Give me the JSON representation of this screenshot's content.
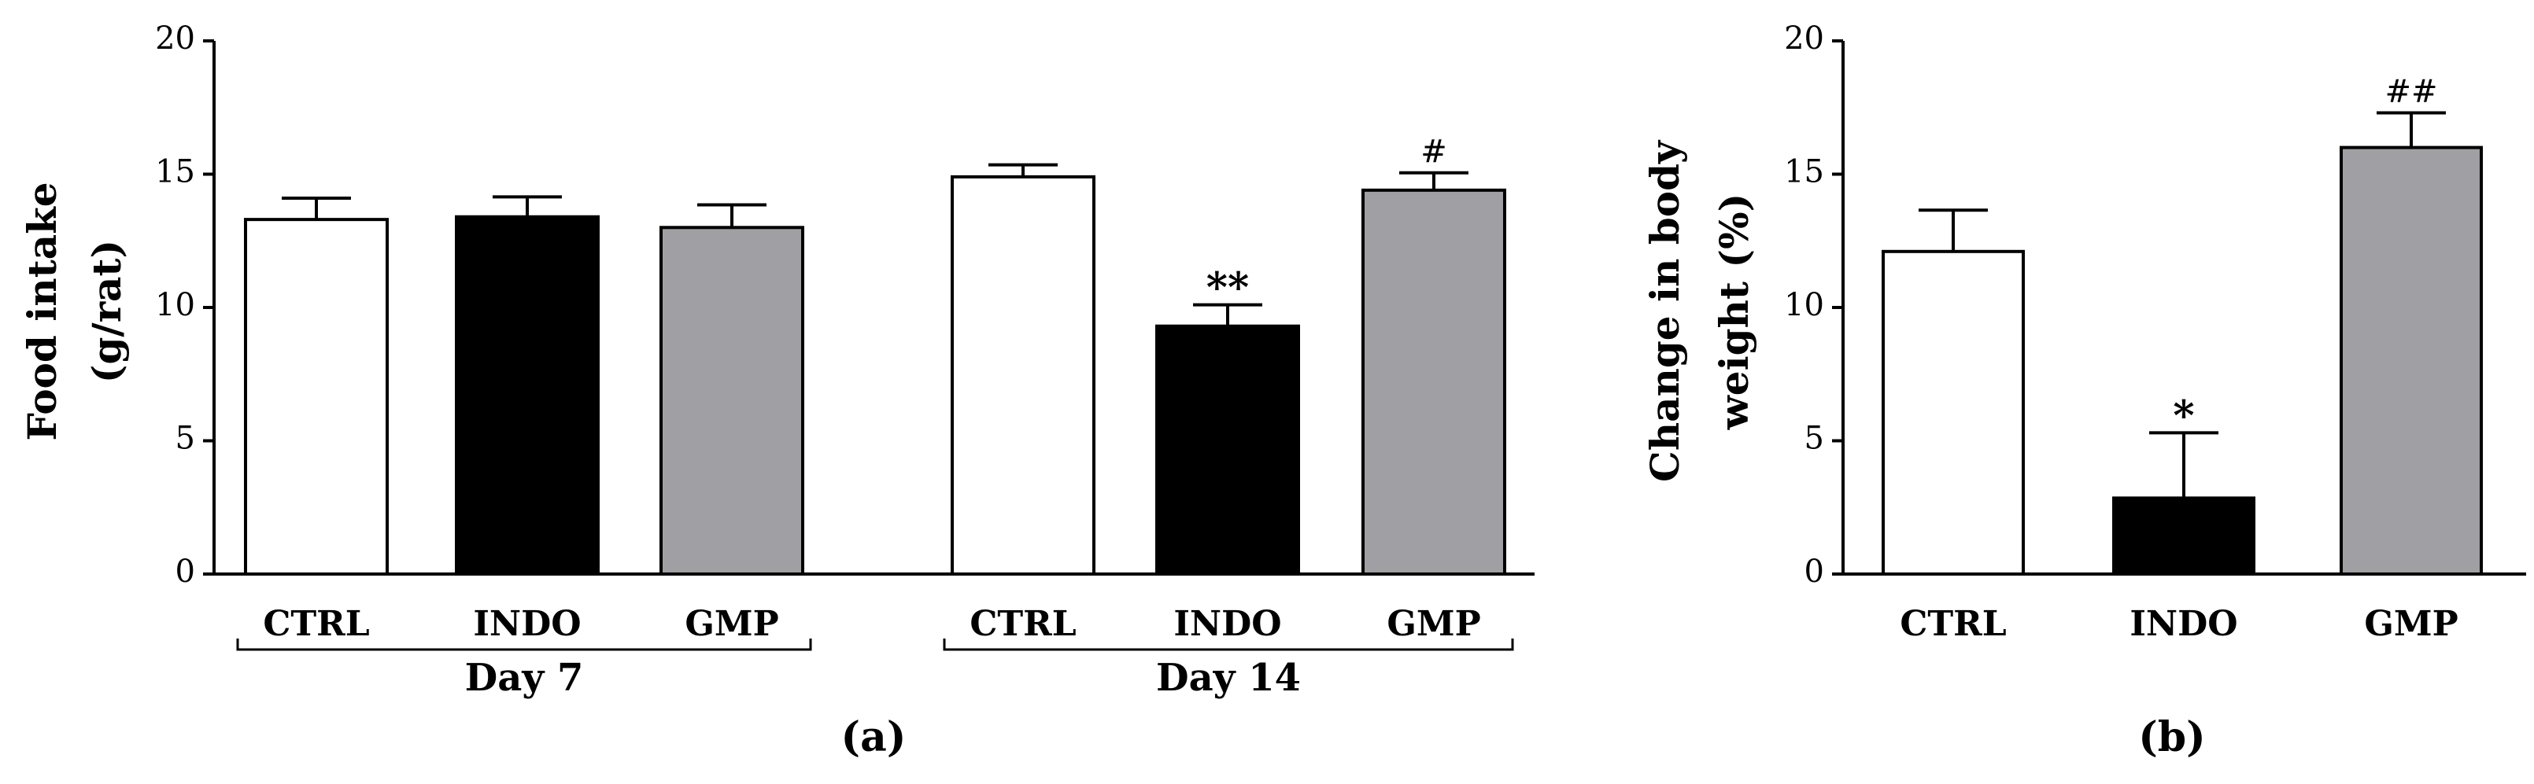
{
  "chart_data": [
    {
      "type": "bar",
      "panel_label": "(a)",
      "ylabel": [
        "Food intake",
        "(g/rat)"
      ],
      "ylim": [
        0,
        20
      ],
      "yticks": [
        0,
        5,
        10,
        15,
        20
      ],
      "groups": [
        {
          "label": "Day 7",
          "bars": [
            {
              "category": "CTRL",
              "value": 13.3,
              "error": 0.8,
              "fill": "#ffffff",
              "sig": ""
            },
            {
              "category": "INDO",
              "value": 13.4,
              "error": 0.75,
              "fill": "#000000",
              "sig": ""
            },
            {
              "category": "GMP",
              "value": 13.0,
              "error": 0.85,
              "fill": "#a0a0a4",
              "sig": ""
            }
          ]
        },
        {
          "label": "Day 14",
          "bars": [
            {
              "category": "CTRL",
              "value": 14.9,
              "error": 0.45,
              "fill": "#ffffff",
              "sig": ""
            },
            {
              "category": "INDO",
              "value": 9.3,
              "error": 0.8,
              "fill": "#000000",
              "sig": "**"
            },
            {
              "category": "GMP",
              "value": 14.4,
              "error": 0.65,
              "fill": "#a0a0a4",
              "sig": "#"
            }
          ]
        }
      ]
    },
    {
      "type": "bar",
      "panel_label": "(b)",
      "ylabel": [
        "Change in body",
        "weight (%)"
      ],
      "ylim": [
        0,
        20
      ],
      "yticks": [
        0,
        5,
        10,
        15,
        20
      ],
      "groups": [
        {
          "label": "",
          "bars": [
            {
              "category": "CTRL",
              "value": 12.1,
              "error": 1.55,
              "fill": "#ffffff",
              "sig": ""
            },
            {
              "category": "INDO",
              "value": 2.85,
              "error": 2.45,
              "fill": "#000000",
              "sig": "*"
            },
            {
              "category": "GMP",
              "value": 16.0,
              "error": 1.3,
              "fill": "#a0a0a4",
              "sig": "##"
            }
          ]
        }
      ]
    }
  ]
}
